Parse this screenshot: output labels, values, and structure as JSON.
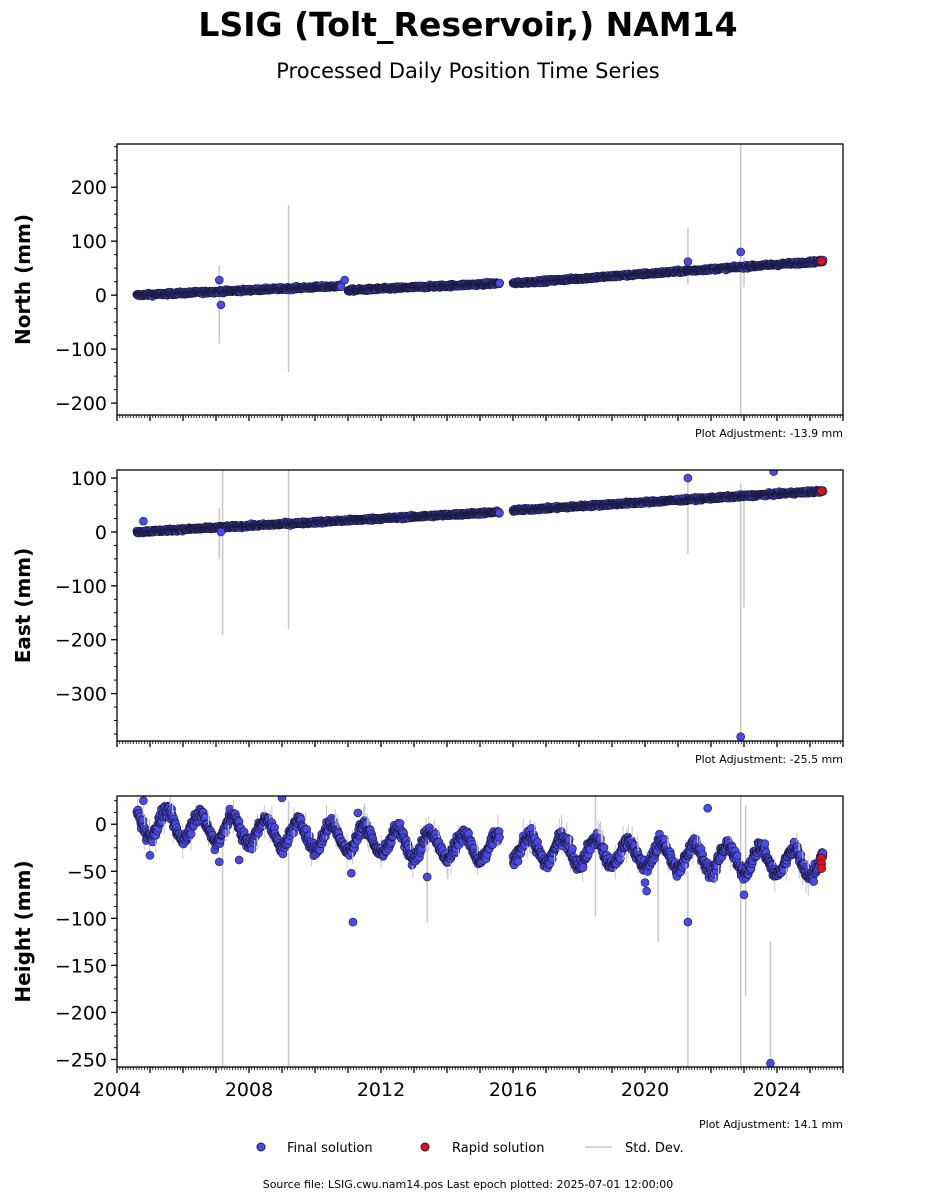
{
  "header": {
    "title": "LSIG (Tolt_Reservoir,) NAM14",
    "subtitle": "Processed Daily Position Time Series"
  },
  "colors": {
    "final": "#4a4ae8",
    "rapid": "#e01010",
    "stddev": "#c8c8c8",
    "edge": "#1a1a3a"
  },
  "chart_data": [
    {
      "type": "scatter",
      "ylabel": "North (mm)",
      "ylim": [
        -222,
        280
      ],
      "yticks": [
        -200,
        -100,
        0,
        100,
        200
      ],
      "xlim": [
        2004,
        2026
      ],
      "adjustment": "Plot Adjustment: -13.9 mm",
      "trend": [
        {
          "x": [
            2004.6,
            2010.8
          ],
          "y": [
            0,
            17
          ]
        },
        {
          "x": [
            2011.0,
            2015.6
          ],
          "y": [
            9,
            22
          ]
        },
        {
          "x": [
            2016.0,
            2025.4
          ],
          "y": [
            22,
            63
          ]
        }
      ],
      "outliers": [
        [
          2007.1,
          28
        ],
        [
          2007.15,
          -18
        ],
        [
          2010.9,
          28
        ],
        [
          2021.3,
          62
        ],
        [
          2022.9,
          80
        ]
      ],
      "stddev_bars": [
        [
          2007.1,
          -90,
          55
        ],
        [
          2009.2,
          -143,
          167
        ],
        [
          2021.3,
          20,
          125
        ],
        [
          2022.9,
          -222,
          280
        ],
        [
          2023.0,
          15,
          70
        ]
      ],
      "rapid": [
        [
          2025.35,
          63
        ]
      ]
    },
    {
      "type": "scatter",
      "ylabel": "East (mm)",
      "ylim": [
        -388,
        115
      ],
      "yticks": [
        -300,
        -200,
        -100,
        0,
        100
      ],
      "xlim": [
        2004,
        2026
      ],
      "adjustment": "Plot Adjustment: -25.5 mm",
      "trend": [
        {
          "x": [
            2004.6,
            2015.6
          ],
          "y": [
            0,
            37
          ]
        },
        {
          "x": [
            2016.0,
            2025.4
          ],
          "y": [
            40,
            76
          ]
        }
      ],
      "outliers": [
        [
          2004.8,
          20
        ],
        [
          2007.15,
          0
        ],
        [
          2021.3,
          100
        ],
        [
          2022.9,
          -380
        ],
        [
          2023.9,
          112
        ]
      ],
      "stddev_bars": [
        [
          2007.1,
          -50,
          45
        ],
        [
          2007.2,
          -192,
          115
        ],
        [
          2009.2,
          -180,
          115
        ],
        [
          2021.3,
          -40,
          95
        ],
        [
          2022.9,
          -388,
          90
        ],
        [
          2023.0,
          -140,
          60
        ]
      ],
      "rapid": [
        [
          2025.35,
          76
        ]
      ]
    },
    {
      "type": "scatter",
      "ylabel": "Height (mm)",
      "ylim": [
        -258,
        30
      ],
      "yticks": [
        -250,
        -200,
        -150,
        -100,
        -50,
        0
      ],
      "xlim": [
        2004,
        2026
      ],
      "xticks": [
        2004,
        2008,
        2012,
        2016,
        2020,
        2024
      ],
      "adjustment": "Plot Adjustment: 14.1 mm",
      "trend": [
        {
          "x": [
            2004.6,
            2015.6
          ],
          "y": [
            2,
            -27
          ]
        },
        {
          "x": [
            2016.0,
            2025.4
          ],
          "y": [
            -25,
            -42
          ]
        }
      ],
      "seasonal_amplitude": 14,
      "outliers": [
        [
          2004.8,
          25
        ],
        [
          2005.0,
          -33
        ],
        [
          2007.1,
          -40
        ],
        [
          2007.7,
          -38
        ],
        [
          2009.0,
          28
        ],
        [
          2011.1,
          -52
        ],
        [
          2011.15,
          -104
        ],
        [
          2011.3,
          12
        ],
        [
          2013.4,
          -56
        ],
        [
          2020.0,
          -62
        ],
        [
          2020.05,
          -71
        ],
        [
          2021.3,
          -104
        ],
        [
          2021.9,
          17
        ],
        [
          2023.0,
          -75
        ],
        [
          2023.8,
          -254
        ]
      ],
      "stddev_bars": [
        [
          2007.2,
          -258,
          -20
        ],
        [
          2009.2,
          -258,
          25
        ],
        [
          2013.4,
          -105,
          -20
        ],
        [
          2018.5,
          -98,
          30
        ],
        [
          2020.4,
          -125,
          -10
        ],
        [
          2021.3,
          -258,
          -50
        ],
        [
          2022.9,
          -258,
          30
        ],
        [
          2023.05,
          -183,
          20
        ],
        [
          2023.8,
          -258,
          -125
        ]
      ],
      "rapid": [
        [
          2025.35,
          -36
        ],
        [
          2025.35,
          -42
        ],
        [
          2025.35,
          -47
        ]
      ]
    }
  ],
  "legend": {
    "final_label": "Final solution",
    "rapid_label": "Rapid solution",
    "stddev_label": "Std. Dev."
  },
  "footer": {
    "source": "Source file: LSIG.cwu.nam14.pos  Last epoch plotted: 2025-07-01 12:00:00"
  }
}
